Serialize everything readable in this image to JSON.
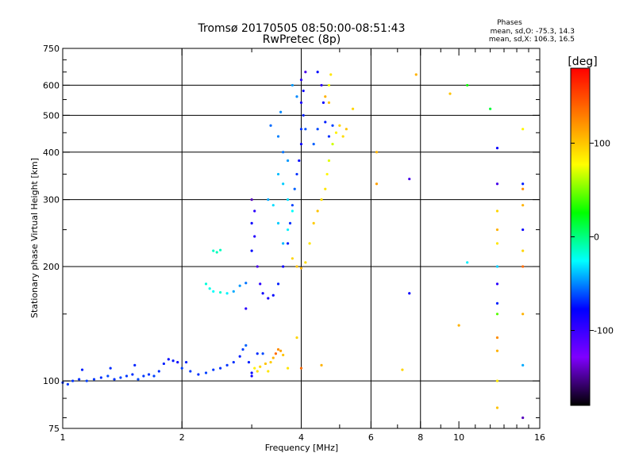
{
  "chart_data": {
    "type": "scatter",
    "title": "Tromsø 20170505 08:50:00-08:51:43",
    "subtitle": "RwPretec (8p)",
    "xlabel": "Frequency [MHz]",
    "ylabel": "Stationary phase Virtual Height [km]",
    "x_scale": "log",
    "y_scale": "log",
    "xlim": [
      1,
      16
    ],
    "ylim": [
      75,
      750
    ],
    "xticks": [
      1,
      2,
      4,
      6,
      8,
      10,
      16
    ],
    "xminorticks": [
      3,
      5,
      7,
      9,
      11,
      12,
      13,
      14,
      15
    ],
    "yticks": [
      75,
      100,
      200,
      300,
      400,
      500,
      600,
      750
    ],
    "yminorticks": [
      80,
      90,
      150,
      250,
      350,
      450,
      550,
      650,
      700
    ],
    "xgrid": [
      2,
      4,
      6,
      8
    ],
    "ygrid": [
      100,
      200,
      300,
      400,
      500,
      600
    ],
    "grid": true,
    "legend": {
      "heading": "Phases",
      "lines": [
        "mean, sd,O: -75.3, 14.3",
        "mean, sd,X: 106.3, 16.5"
      ],
      "placement": "top-right"
    },
    "colorbar": {
      "label": "[deg]",
      "range": [
        -180,
        180
      ],
      "ticks": [
        100,
        0,
        -100
      ],
      "stops": [
        "#ff0000",
        "#ff7f00",
        "#ffff00",
        "#00ff00",
        "#00ffff",
        "#0000ff",
        "#7f00ff",
        "#000000"
      ]
    },
    "series": [
      {
        "points": [
          [
            1.0,
            99,
            -95
          ],
          [
            1.03,
            98,
            -92
          ],
          [
            1.06,
            100,
            -93
          ],
          [
            1.1,
            101,
            -95
          ],
          [
            1.12,
            107,
            -100
          ],
          [
            1.15,
            100,
            -90
          ],
          [
            1.2,
            101,
            -92
          ],
          [
            1.25,
            102,
            -95
          ],
          [
            1.3,
            103,
            -88
          ],
          [
            1.32,
            108,
            -96
          ],
          [
            1.35,
            101,
            -93
          ],
          [
            1.4,
            102,
            -90
          ],
          [
            1.45,
            103,
            -92
          ],
          [
            1.5,
            104,
            -95
          ],
          [
            1.52,
            110,
            -98
          ],
          [
            1.55,
            101,
            -88
          ],
          [
            1.6,
            103,
            -92
          ],
          [
            1.65,
            104,
            -94
          ],
          [
            1.7,
            103,
            -90
          ],
          [
            1.75,
            106,
            -95
          ],
          [
            1.8,
            111,
            -100
          ],
          [
            1.85,
            114,
            -105
          ],
          [
            1.9,
            113,
            -102
          ],
          [
            1.95,
            112,
            -110
          ],
          [
            2.0,
            108,
            -90
          ],
          [
            2.05,
            112,
            -98
          ],
          [
            2.1,
            106,
            -92
          ],
          [
            2.2,
            104,
            -95
          ],
          [
            2.3,
            105,
            -90
          ],
          [
            2.4,
            107,
            -92
          ],
          [
            2.5,
            108,
            -95
          ],
          [
            2.6,
            110,
            -93
          ],
          [
            2.7,
            112,
            -95
          ],
          [
            2.8,
            116,
            -100
          ],
          [
            2.85,
            121,
            -90
          ],
          [
            2.9,
            124,
            -80
          ],
          [
            2.95,
            112,
            -100
          ],
          [
            3.0,
            103,
            -112
          ],
          [
            3.0,
            105,
            -105
          ],
          [
            3.1,
            118,
            -96
          ],
          [
            3.2,
            118,
            -88
          ]
        ],
        "color_by": "phase_deg"
      },
      {
        "points": [
          [
            3.05,
            108,
            112
          ],
          [
            3.1,
            106,
            118
          ],
          [
            3.15,
            109,
            120
          ],
          [
            3.25,
            111,
            125
          ],
          [
            3.3,
            106,
            115
          ],
          [
            3.35,
            112,
            122
          ],
          [
            3.4,
            115,
            130
          ],
          [
            3.45,
            118,
            150
          ],
          [
            3.5,
            121,
            140
          ],
          [
            3.55,
            120,
            135
          ],
          [
            3.6,
            117,
            125
          ],
          [
            3.7,
            108,
            115
          ]
        ],
        "color_by": "phase_deg"
      },
      {
        "points": [
          [
            2.4,
            220,
            -20
          ],
          [
            2.45,
            218,
            -15
          ],
          [
            2.5,
            221,
            -18
          ],
          [
            2.3,
            180,
            -25
          ],
          [
            2.35,
            175,
            -30
          ],
          [
            2.4,
            172,
            -35
          ],
          [
            2.5,
            171,
            -22
          ],
          [
            2.6,
            170,
            -40
          ],
          [
            2.7,
            172,
            -60
          ],
          [
            2.8,
            178,
            -65
          ],
          [
            2.9,
            181,
            -75
          ]
        ],
        "color_by": "phase_deg"
      },
      {
        "points": [
          [
            3.0,
            300,
            -140
          ],
          [
            3.05,
            280,
            -120
          ],
          [
            3.0,
            260,
            -110
          ],
          [
            3.05,
            240,
            -118
          ],
          [
            3.0,
            220,
            -105
          ],
          [
            3.1,
            200,
            -130
          ],
          [
            3.15,
            180,
            -120
          ],
          [
            3.2,
            170,
            -110
          ],
          [
            3.3,
            165,
            -115
          ],
          [
            3.4,
            168,
            -105
          ],
          [
            3.5,
            180,
            -100
          ],
          [
            3.6,
            200,
            -112
          ],
          [
            3.7,
            230,
            -100
          ],
          [
            3.75,
            260,
            -95
          ],
          [
            3.8,
            290,
            -90
          ],
          [
            3.85,
            320,
            -80
          ],
          [
            3.9,
            350,
            -95
          ],
          [
            3.95,
            380,
            -105
          ],
          [
            4.0,
            420,
            -110
          ],
          [
            4.0,
            460,
            -95
          ],
          [
            4.05,
            500,
            -100
          ],
          [
            4.0,
            540,
            -115
          ],
          [
            4.05,
            580,
            -110
          ],
          [
            4.0,
            620,
            -120
          ],
          [
            4.1,
            650,
            -130
          ],
          [
            4.4,
            650,
            -105
          ],
          [
            4.5,
            600,
            -120
          ],
          [
            4.55,
            540,
            -110
          ],
          [
            4.6,
            480,
            -100
          ],
          [
            4.7,
            440,
            -95
          ],
          [
            4.8,
            470,
            -90
          ],
          [
            3.3,
            300,
            -60
          ],
          [
            3.5,
            350,
            -55
          ],
          [
            3.6,
            330,
            -50
          ],
          [
            3.7,
            300,
            -45
          ],
          [
            3.8,
            280,
            -35
          ],
          [
            3.7,
            250,
            -40
          ],
          [
            3.6,
            230,
            -55
          ],
          [
            3.5,
            260,
            -50
          ],
          [
            3.4,
            290,
            -45
          ],
          [
            3.6,
            400,
            -75
          ],
          [
            3.7,
            380,
            -65
          ],
          [
            3.8,
            600,
            -65
          ],
          [
            3.9,
            560,
            -70
          ],
          [
            3.55,
            510,
            -70
          ],
          [
            3.35,
            470,
            -78
          ],
          [
            3.5,
            440,
            -72
          ],
          [
            4.1,
            460,
            -85
          ],
          [
            4.3,
            420,
            -82
          ],
          [
            4.4,
            460,
            -88
          ]
        ],
        "color_by": "phase_deg"
      },
      {
        "points": [
          [
            3.8,
            210,
            120
          ],
          [
            3.9,
            200,
            125
          ],
          [
            4.0,
            198,
            130
          ],
          [
            4.1,
            205,
            118
          ],
          [
            4.2,
            230,
            115
          ],
          [
            4.3,
            260,
            122
          ],
          [
            4.4,
            280,
            125
          ],
          [
            4.5,
            300,
            118
          ],
          [
            4.6,
            320,
            115
          ],
          [
            4.65,
            350,
            110
          ],
          [
            4.7,
            380,
            100
          ],
          [
            4.8,
            420,
            95
          ],
          [
            4.9,
            450,
            112
          ],
          [
            5.0,
            470,
            120
          ],
          [
            5.1,
            440,
            118
          ],
          [
            5.2,
            460,
            125
          ],
          [
            4.7,
            540,
            125
          ],
          [
            4.7,
            600,
            105
          ],
          [
            4.75,
            640,
            115
          ],
          [
            4.6,
            560,
            130
          ],
          [
            5.4,
            520,
            120
          ],
          [
            6.2,
            330,
            135
          ]
        ],
        "color_by": "phase_deg"
      },
      {
        "points": [
          [
            7.8,
            640,
            130
          ],
          [
            9.5,
            570,
            125
          ],
          [
            10.5,
            600,
            40
          ],
          [
            12.0,
            520,
            20
          ],
          [
            12.5,
            410,
            -110
          ],
          [
            12.5,
            280,
            120
          ],
          [
            12.5,
            250,
            130
          ],
          [
            12.5,
            230,
            115
          ],
          [
            12.5,
            200,
            -50
          ],
          [
            12.5,
            180,
            -120
          ],
          [
            12.5,
            160,
            -100
          ],
          [
            12.5,
            150,
            60
          ],
          [
            12.5,
            130,
            140
          ],
          [
            12.5,
            120,
            130
          ],
          [
            12.5,
            100,
            115
          ],
          [
            12.5,
            85,
            125
          ],
          [
            14.5,
            460,
            110
          ],
          [
            14.5,
            330,
            -100
          ],
          [
            14.5,
            320,
            140
          ],
          [
            14.5,
            290,
            130
          ],
          [
            14.5,
            250,
            -110
          ],
          [
            14.5,
            220,
            120
          ],
          [
            14.5,
            200,
            150
          ],
          [
            14.5,
            150,
            130
          ],
          [
            14.5,
            110,
            -60
          ],
          [
            14.5,
            80,
            -140
          ],
          [
            10.0,
            140,
            130
          ],
          [
            7.5,
            170,
            -110
          ],
          [
            7.5,
            340,
            -130
          ],
          [
            6.2,
            400,
            130
          ],
          [
            7.2,
            107,
            120
          ],
          [
            4.5,
            110,
            130
          ],
          [
            4.0,
            108,
            150
          ],
          [
            3.9,
            130,
            120
          ],
          [
            2.9,
            155,
            -120
          ],
          [
            12.5,
            330,
            -130
          ],
          [
            10.5,
            205,
            -40
          ]
        ],
        "color_by": "phase_deg"
      }
    ]
  }
}
